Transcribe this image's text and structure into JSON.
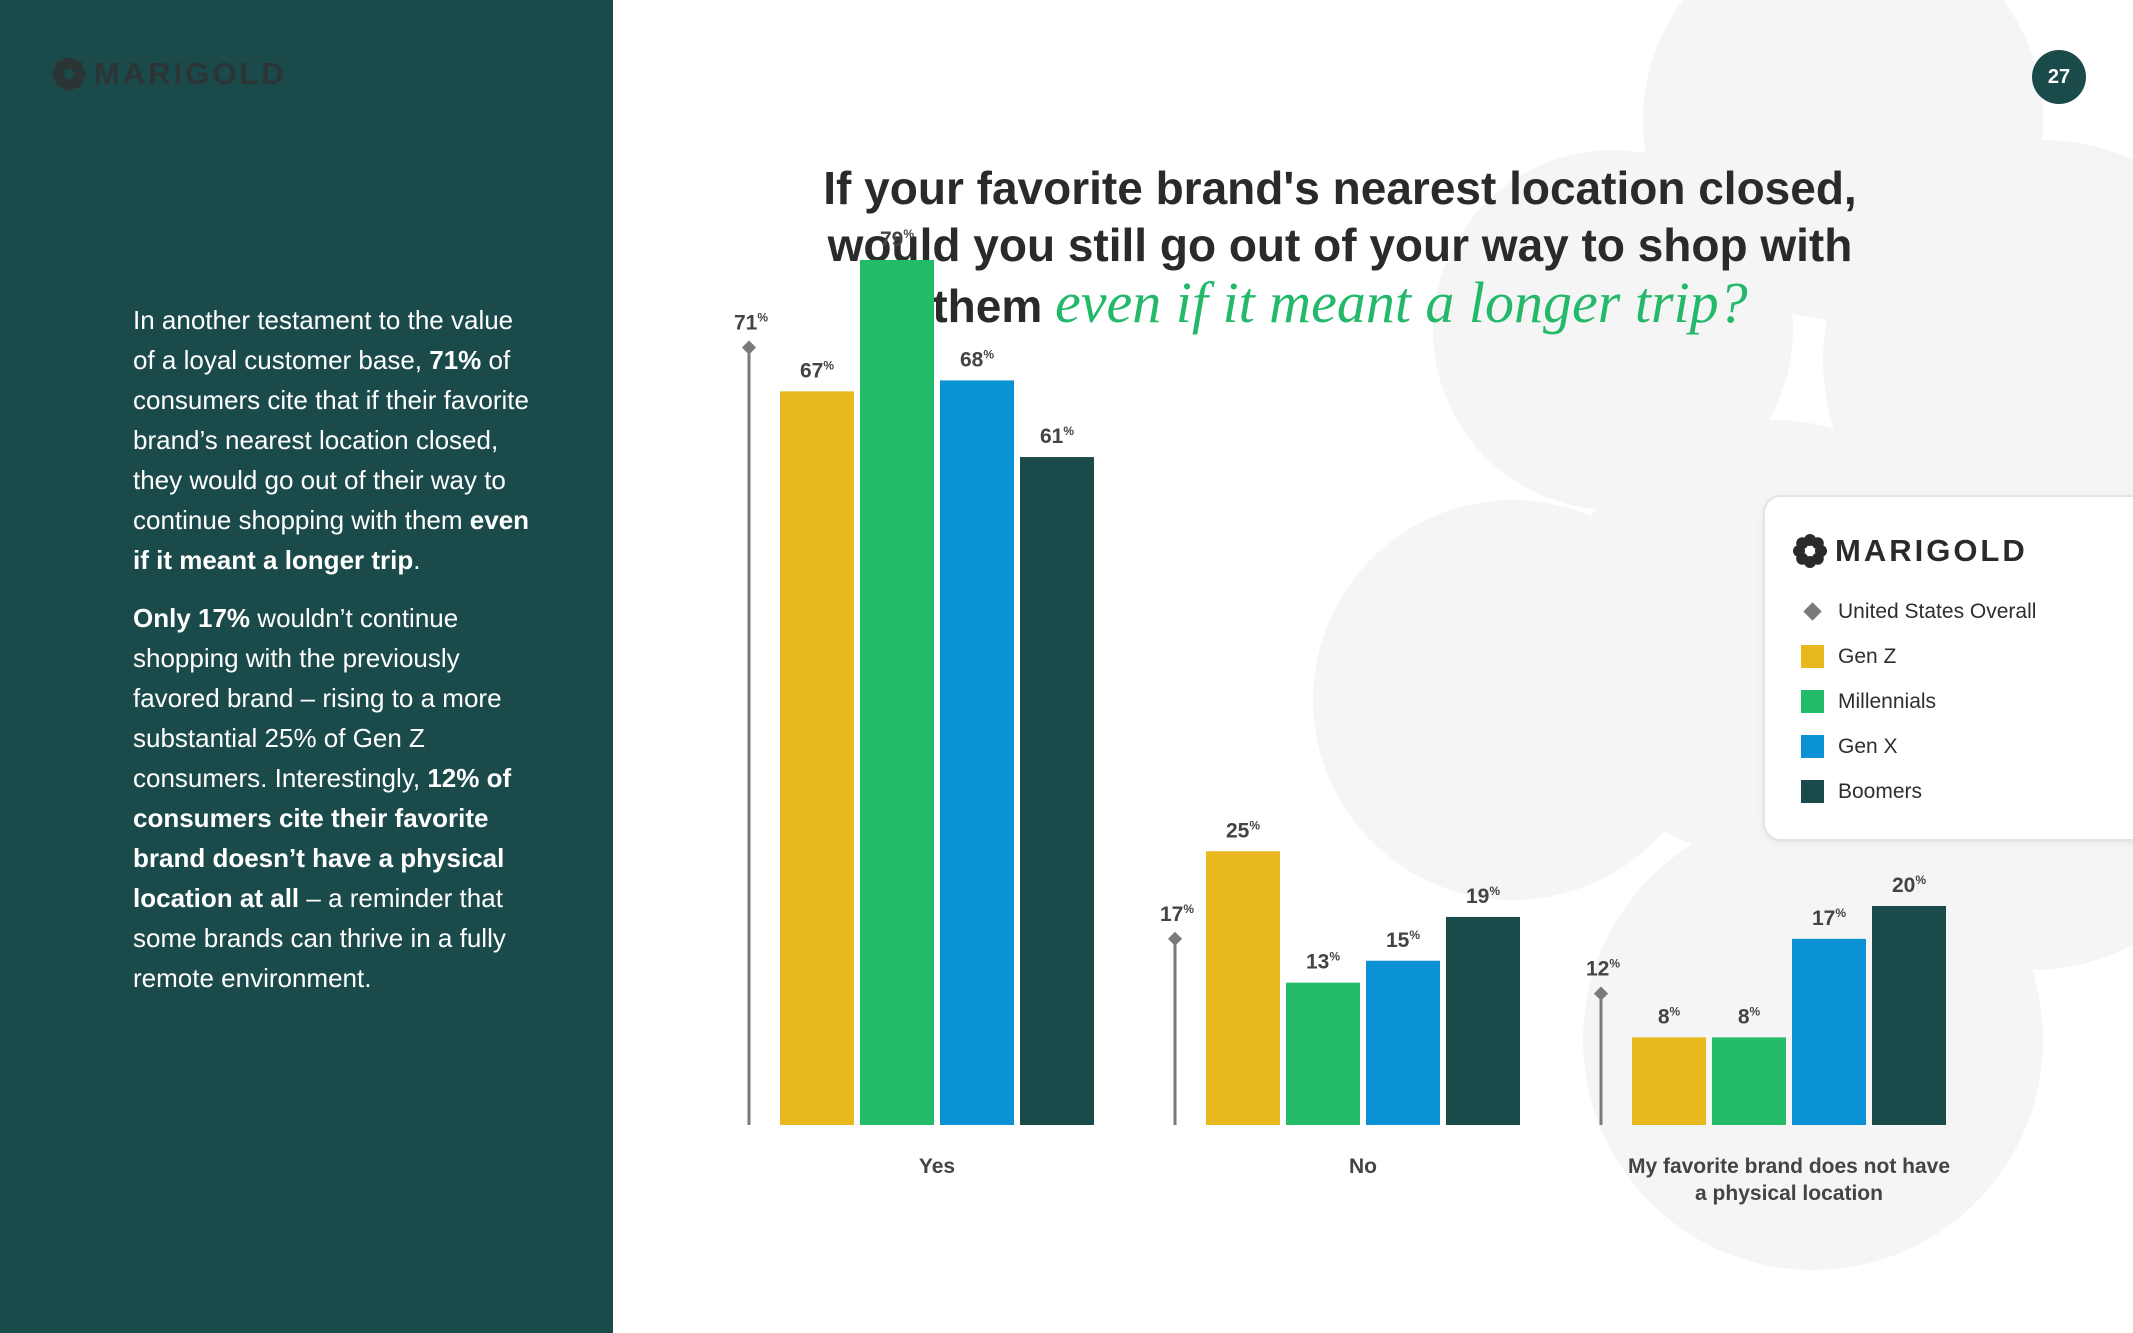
{
  "brand": {
    "name": "MARIGOLD",
    "tm": "™"
  },
  "page_number": "27",
  "left_text": {
    "p1": [
      {
        "text": "In another testament to the value of a loyal customer base, ",
        "bold": false
      },
      {
        "text": "71%",
        "bold": true
      },
      {
        "text": " of consumers cite that if their favorite brand’s nearest location closed, they would go out of their way to continue shopping with them ",
        "bold": false
      },
      {
        "text": "even if it meant a longer trip",
        "bold": true
      },
      {
        "text": ".",
        "bold": false
      }
    ],
    "p2": [
      {
        "text": "Only 17%",
        "bold": true
      },
      {
        "text": " wouldn’t continue shopping with the previously favored brand – rising to a more substantial 25% of Gen Z consumers. Interestingly, ",
        "bold": false
      },
      {
        "text": "12% of consumers cite their favorite brand doesn’t have a physical location at all",
        "bold": true
      },
      {
        "text": " – a reminder that some brands can thrive in a fully remote environment.",
        "bold": false
      }
    ]
  },
  "title": {
    "line1": "If your favorite brand's nearest location closed,",
    "line2": "would you still go out of your way to shop with",
    "line3_plain": "them ",
    "line3_accent": "even if it meant a longer trip?"
  },
  "colors": {
    "Gen Z": "#e8b81e",
    "Millennials": "#22bb68",
    "Gen X": "#0a92d4",
    "Boomers": "#1b4a4a",
    "overall": "#7a7a7a",
    "label": "#444444"
  },
  "legend": {
    "overall_label": "United States Overall",
    "items": [
      "Gen Z",
      "Millennials",
      "Gen X",
      "Boomers"
    ]
  },
  "chart_data": {
    "type": "bar",
    "categories": [
      "Yes",
      "No",
      "My favorite brand does not have a physical location"
    ],
    "category_lines": [
      [
        "Yes"
      ],
      [
        "No"
      ],
      [
        "My favorite brand does not have",
        "a physical location"
      ]
    ],
    "overall": {
      "name": "United States Overall",
      "values": [
        71,
        17,
        12
      ]
    },
    "series": [
      {
        "name": "Gen Z",
        "values": [
          67,
          25,
          8
        ]
      },
      {
        "name": "Millennials",
        "values": [
          79,
          13,
          8
        ]
      },
      {
        "name": "Gen X",
        "values": [
          68,
          15,
          17
        ]
      },
      {
        "name": "Boomers",
        "values": [
          61,
          19,
          20
        ]
      }
    ],
    "unit": "%",
    "ylim": [
      0,
      79
    ],
    "grid": false,
    "legend_position": "right"
  }
}
